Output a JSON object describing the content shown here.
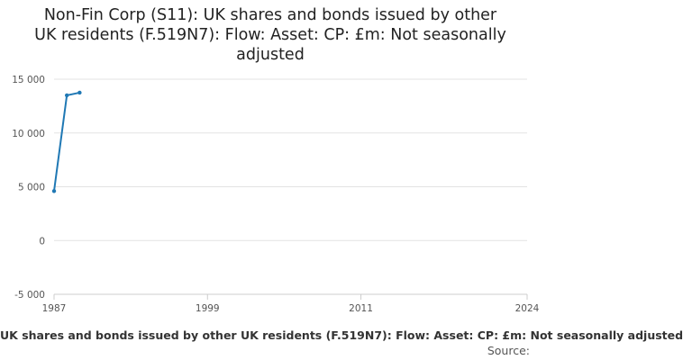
{
  "chart_data": {
    "type": "line",
    "title": "Non-Fin Corp (S11): UK shares and bonds issued by other UK residents (F.519N7): Flow: Asset: CP: £m: Not seasonally adjusted",
    "title_lines": [
      "Non-Fin Corp (S11): UK shares and bonds issued by other",
      "UK residents (F.519N7): Flow: Asset: CP: £m: Not seasonally",
      "adjusted"
    ],
    "xlabel": "",
    "ylabel": "",
    "xlim": [
      1987,
      2024
    ],
    "ylim": [
      -5000,
      15000
    ],
    "x_ticks": [
      "1987",
      "1999",
      "2011",
      "2024"
    ],
    "y_ticks": [
      {
        "value": 15000,
        "label": "15 000"
      },
      {
        "value": 10000,
        "label": "10 000"
      },
      {
        "value": 5000,
        "label": "5 000"
      },
      {
        "value": 0,
        "label": "0"
      },
      {
        "value": -5000,
        "label": "-5 000"
      }
    ],
    "grid": true,
    "legend_position": "bottom",
    "series": [
      {
        "name": "UK shares and bonds issued by other UK residents (F.519N7): Flow: Asset: CP: £m: Not seasonally adjusted",
        "color": "#1f78b4",
        "x": [
          1987,
          1988,
          1989
        ],
        "values": [
          4600,
          13500,
          13750
        ]
      }
    ]
  },
  "source_label": "Source:"
}
